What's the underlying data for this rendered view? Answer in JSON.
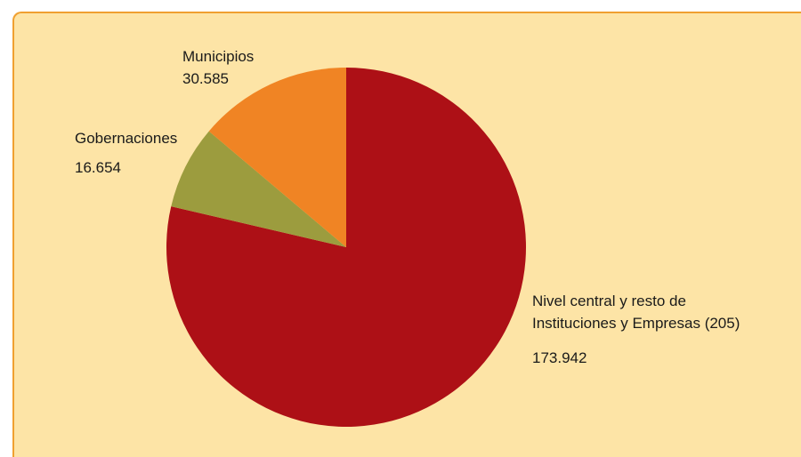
{
  "chart_data": {
    "type": "pie",
    "title": "",
    "slices": [
      {
        "label_lines": [
          "Nivel central y resto de",
          "Instituciones y Empresas (205)"
        ],
        "value": 173942,
        "value_label": "173.942",
        "color": "#ad1016"
      },
      {
        "label_lines": [
          "Gobernaciones"
        ],
        "value": 16654,
        "value_label": "16.654",
        "color": "#9c9c3e"
      },
      {
        "label_lines": [
          "Municipios"
        ],
        "value": 30585,
        "value_label": "30.585",
        "color": "#f08424"
      }
    ]
  },
  "colors": {
    "background": "#fde4a6",
    "frame_border": "#f0a030"
  }
}
